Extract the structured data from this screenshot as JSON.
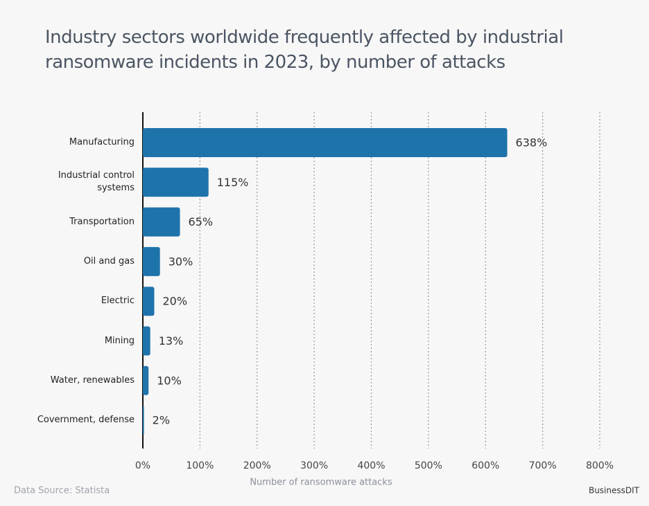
{
  "chart_data": {
    "type": "barh",
    "title": "Industry sectors worldwide frequently affected by industrial ransomware incidents in 2023, by number of attacks",
    "x_label": "Number of ransomware attacks",
    "source": "Data Source: Statista",
    "brand": "BusinessDIT",
    "categories": [
      "Manufacturing",
      "Industrial control systems",
      "Transportation",
      "Oil and gas",
      "Electric",
      "Mining",
      "Water, renewables",
      "Covernment, defense"
    ],
    "values": [
      638,
      115,
      65,
      30,
      20,
      13,
      10,
      2
    ],
    "value_labels": [
      "638%",
      "115%",
      "65%",
      "30%",
      "20%",
      "13%",
      "10%",
      "2%"
    ],
    "color": "#1f73ab",
    "xlim": [
      0,
      800
    ],
    "xticks": [
      {
        "value": 0,
        "label": "0%"
      },
      {
        "value": 100,
        "label": "100%"
      },
      {
        "value": 200,
        "label": "200%"
      },
      {
        "value": 300,
        "label": "300%"
      },
      {
        "value": 400,
        "label": "400%"
      },
      {
        "value": 500,
        "label": "500%"
      },
      {
        "value": 600,
        "label": "600%"
      },
      {
        "value": 700,
        "label": "700%"
      },
      {
        "value": 800,
        "label": "800%"
      }
    ],
    "grid": true
  }
}
